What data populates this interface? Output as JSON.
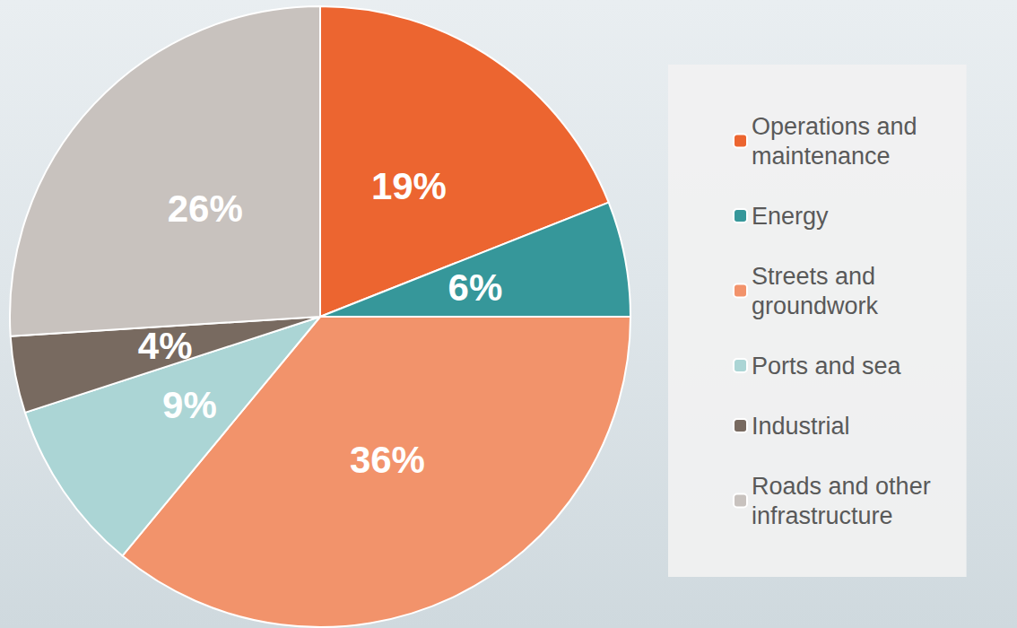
{
  "chart_data": {
    "type": "pie",
    "categories": [
      "Operations and maintenance",
      "Energy",
      "Streets and groundwork",
      "Ports and sea",
      "Industrial",
      "Roads and other infrastructure"
    ],
    "values": [
      19,
      6,
      36,
      9,
      4,
      26
    ],
    "value_labels": [
      "19%",
      "6%",
      "36%",
      "9%",
      "4%",
      "26%"
    ],
    "colors": [
      "#ec6530",
      "#36979a",
      "#f2936b",
      "#abd5d5",
      "#786a60",
      "#c8c2be"
    ],
    "data_labels": true,
    "legend": "right"
  }
}
